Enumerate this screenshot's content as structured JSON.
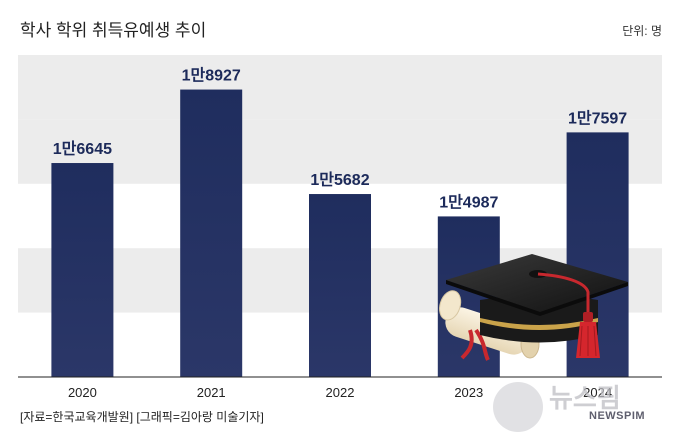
{
  "header": {
    "title": "학사 학위 취득유예생 추이",
    "unit": "단위: 명"
  },
  "footer": {
    "source": "[자료=한국교육개발원] [그래픽=김아랑 미술기자]"
  },
  "watermark": {
    "brand": "뉴스핌",
    "sub": "NEWSPIM"
  },
  "chart_data": {
    "type": "bar",
    "categories": [
      "2020",
      "2021",
      "2022",
      "2023",
      "2024"
    ],
    "values": [
      16645,
      18927,
      15682,
      14987,
      17597
    ],
    "value_labels": [
      "1만6645",
      "1만8927",
      "1만5682",
      "1만4987",
      "1만7597"
    ],
    "title": "학사 학위 취득유예생 추이",
    "unit": "단위: 명",
    "ylim": [
      10000,
      20000
    ],
    "grid": "horizontal bands",
    "colors": {
      "bar": "#1c2a5a",
      "band": "#ececec",
      "label": "#1c2a5a"
    }
  }
}
